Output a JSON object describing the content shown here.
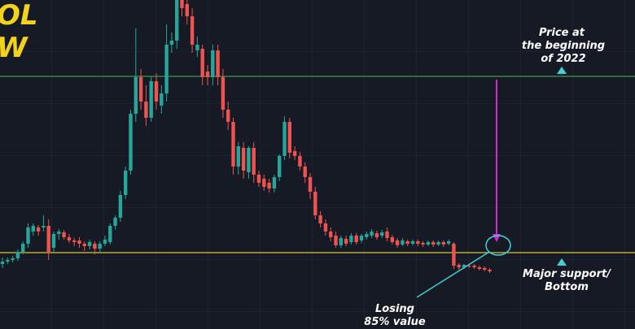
{
  "chart_data": {
    "type": "candlestick",
    "title_lines": [
      "OL",
      "W"
    ],
    "ylim": [
      0,
      405
    ],
    "up_color": "#26a69a",
    "down_color": "#ef5350",
    "levels": [
      {
        "value": 311,
        "color": "#3c9a4a"
      },
      {
        "value": 94,
        "color": "#d8c83a"
      }
    ],
    "annotations": {
      "top": [
        "Price at",
        "the beginning",
        "of 2022"
      ],
      "support": [
        "Major support/",
        "Bottom"
      ],
      "loss": [
        "Losing",
        "85% value"
      ]
    },
    "candles": [
      [
        80,
        88,
        75,
        83
      ],
      [
        83,
        88,
        80,
        85
      ],
      [
        85,
        90,
        82,
        87
      ],
      [
        87,
        98,
        84,
        95
      ],
      [
        95,
        108,
        92,
        105
      ],
      [
        105,
        130,
        100,
        125
      ],
      [
        120,
        130,
        115,
        127
      ],
      [
        125,
        128,
        115,
        120
      ],
      [
        125,
        140,
        120,
        127
      ],
      [
        127,
        135,
        85,
        95
      ],
      [
        100,
        120,
        95,
        117
      ],
      [
        117,
        123,
        110,
        120
      ],
      [
        119,
        122,
        110,
        113
      ],
      [
        113,
        117,
        106,
        109
      ],
      [
        109,
        112,
        102,
        107
      ],
      [
        109,
        113,
        100,
        105
      ],
      [
        105,
        108,
        96,
        102
      ],
      [
        102,
        110,
        98,
        107
      ],
      [
        105,
        108,
        92,
        99
      ],
      [
        99,
        108,
        95,
        105
      ],
      [
        105,
        115,
        102,
        110
      ],
      [
        107,
        130,
        104,
        127
      ],
      [
        127,
        140,
        122,
        137
      ],
      [
        137,
        170,
        132,
        165
      ],
      [
        165,
        200,
        160,
        195
      ],
      [
        195,
        270,
        190,
        265
      ],
      [
        265,
        370,
        255,
        310
      ],
      [
        310,
        320,
        270,
        280
      ],
      [
        280,
        300,
        250,
        260
      ],
      [
        260,
        310,
        255,
        305
      ],
      [
        305,
        315,
        270,
        280
      ],
      [
        275,
        300,
        265,
        290
      ],
      [
        290,
        375,
        280,
        350
      ],
      [
        350,
        365,
        340,
        355
      ],
      [
        355,
        405,
        345,
        405
      ],
      [
        405,
        405,
        385,
        395
      ],
      [
        400,
        405,
        375,
        385
      ],
      [
        385,
        395,
        340,
        350
      ],
      [
        343,
        360,
        335,
        350
      ],
      [
        345,
        350,
        300,
        310
      ],
      [
        317,
        325,
        300,
        310
      ],
      [
        310,
        350,
        300,
        343
      ],
      [
        343,
        350,
        300,
        310
      ],
      [
        310,
        320,
        260,
        270
      ],
      [
        270,
        280,
        245,
        255
      ],
      [
        255,
        260,
        190,
        200
      ],
      [
        200,
        230,
        190,
        225
      ],
      [
        223,
        230,
        185,
        195
      ],
      [
        193,
        225,
        185,
        223
      ],
      [
        223,
        230,
        180,
        190
      ],
      [
        190,
        195,
        175,
        180
      ],
      [
        185,
        190,
        170,
        175
      ],
      [
        180,
        185,
        168,
        173
      ],
      [
        173,
        190,
        168,
        187
      ],
      [
        187,
        215,
        182,
        213
      ],
      [
        213,
        262,
        208,
        255
      ],
      [
        255,
        260,
        210,
        217
      ],
      [
        219,
        225,
        208,
        213
      ],
      [
        213,
        218,
        195,
        200
      ],
      [
        200,
        205,
        180,
        187
      ],
      [
        187,
        192,
        160,
        169
      ],
      [
        169,
        175,
        135,
        140
      ],
      [
        140,
        145,
        125,
        130
      ],
      [
        130,
        135,
        115,
        120
      ],
      [
        120,
        125,
        108,
        113
      ],
      [
        115,
        120,
        100,
        103
      ],
      [
        103,
        115,
        100,
        112
      ],
      [
        111,
        115,
        102,
        105
      ],
      [
        107,
        118,
        104,
        115
      ],
      [
        115,
        118,
        104,
        107
      ],
      [
        109,
        117,
        106,
        115
      ],
      [
        113,
        120,
        110,
        117
      ],
      [
        115,
        123,
        112,
        120
      ],
      [
        118,
        121,
        110,
        113
      ],
      [
        115,
        122,
        112,
        119
      ],
      [
        120,
        125,
        108,
        112
      ],
      [
        113,
        116,
        104,
        107
      ],
      [
        109,
        112,
        100,
        103
      ],
      [
        104,
        112,
        102,
        109
      ],
      [
        108,
        110,
        102,
        105
      ],
      [
        105,
        110,
        103,
        108
      ],
      [
        108,
        110,
        102,
        105
      ],
      [
        106,
        108,
        101,
        104
      ],
      [
        104,
        109,
        102,
        107
      ],
      [
        107,
        109,
        101,
        104
      ],
      [
        104,
        109,
        102,
        107
      ],
      [
        107,
        109,
        101,
        104
      ],
      [
        105,
        110,
        103,
        108
      ],
      [
        105,
        107,
        74,
        78
      ],
      [
        79,
        81,
        73,
        76
      ],
      [
        76,
        80,
        74,
        79
      ],
      [
        78,
        80,
        75,
        77
      ],
      [
        78,
        80,
        74,
        76
      ],
      [
        76,
        78,
        72,
        74
      ],
      [
        75,
        77,
        71,
        73
      ],
      [
        73,
        75,
        69,
        71
      ]
    ]
  }
}
